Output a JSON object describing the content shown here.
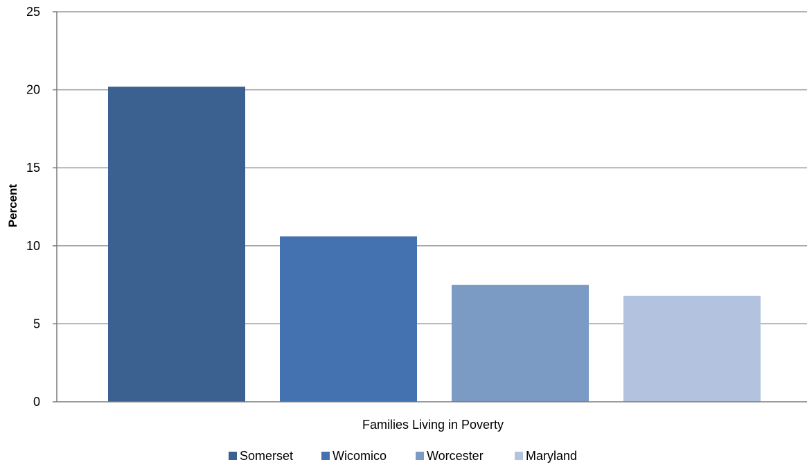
{
  "chart_data": {
    "type": "bar",
    "title": "",
    "xlabel": "Families Living in Poverty",
    "ylabel": "Percent",
    "ylim": [
      0,
      25
    ],
    "yticks": [
      0,
      5,
      10,
      15,
      20,
      25
    ],
    "grid": true,
    "legend_position": "bottom",
    "series": [
      {
        "name": "Somerset",
        "values": [
          20.2
        ],
        "color": "#3a6190"
      },
      {
        "name": "Wicomico",
        "values": [
          10.6
        ],
        "color": "#4472b0"
      },
      {
        "name": "Worcester",
        "values": [
          7.5
        ],
        "color": "#7b9bc4"
      },
      {
        "name": "Maryland",
        "values": [
          6.8
        ],
        "color": "#b3c3df"
      }
    ]
  }
}
